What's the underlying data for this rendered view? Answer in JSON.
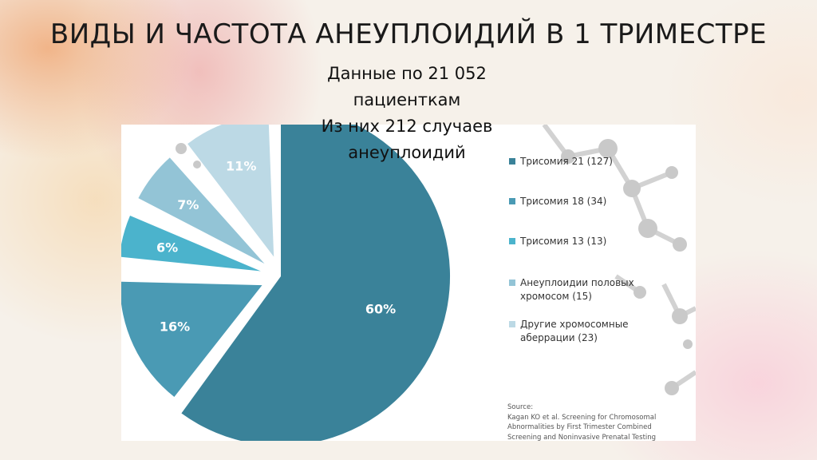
{
  "slide": {
    "title": "ВИДЫ И ЧАСТОТА АНЕУПЛОИДИЙ В 1 ТРИМЕСТРЕ",
    "subtitle_lines": [
      "Данные по 21 052",
      "пациенткам",
      "Из них 212 случаев",
      "анеуплоидий"
    ]
  },
  "chart_data": {
    "type": "pie",
    "title": "",
    "slices": [
      {
        "label": "Трисомия 21 (127)",
        "percent_label": "60%",
        "value": 60,
        "color": "#3a8299"
      },
      {
        "label": "Трисомия 18 (34)",
        "percent_label": "16%",
        "value": 16,
        "color": "#4a9ab4"
      },
      {
        "label": "Трисомия 13 (13)",
        "percent_label": "6%",
        "value": 6,
        "color": "#4bb3cc"
      },
      {
        "label": "Анеуплоидии половых хромосом (15)",
        "percent_label": "7%",
        "value": 7,
        "color": "#93c4d6"
      },
      {
        "label": "Другие хромосомные аберрации (23)",
        "percent_label": "11%",
        "value": 11,
        "color": "#bcd9e5"
      }
    ],
    "legend_position": "right",
    "source_lines": [
      "Source:",
      "Kagan KO et al. Screening for Chromosomal",
      "Abnormalities by First Trimester Combined",
      "Screening and Noninvasive Prenatal Testing"
    ]
  }
}
